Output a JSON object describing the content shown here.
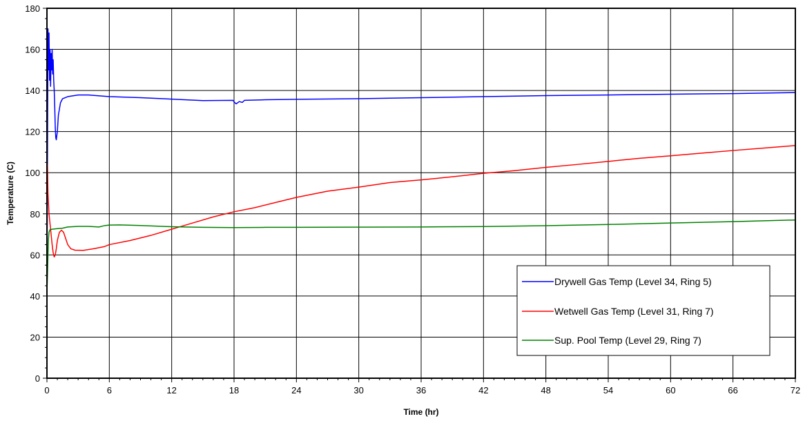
{
  "chart_data": {
    "type": "line",
    "xlabel": "Time (hr)",
    "ylabel": "Temperature (C)",
    "xlim": [
      0,
      72
    ],
    "ylim": [
      0,
      180
    ],
    "xticks": [
      0,
      6,
      12,
      18,
      24,
      30,
      36,
      42,
      48,
      54,
      60,
      66,
      72
    ],
    "yticks": [
      0,
      20,
      40,
      60,
      80,
      100,
      120,
      140,
      160,
      180
    ],
    "grid": true,
    "legend_position": "bottom-right",
    "series": [
      {
        "name": "Drywell Gas Temp (Level 34, Ring 5)",
        "color": "#0000ff",
        "points": [
          [
            0,
            40
          ],
          [
            0.05,
            105
          ],
          [
            0.1,
            170
          ],
          [
            0.15,
            150
          ],
          [
            0.2,
            168
          ],
          [
            0.25,
            145
          ],
          [
            0.3,
            160
          ],
          [
            0.35,
            142
          ],
          [
            0.4,
            158
          ],
          [
            0.45,
            150
          ],
          [
            0.5,
            160
          ],
          [
            0.55,
            148
          ],
          [
            0.6,
            155
          ],
          [
            0.65,
            145
          ],
          [
            0.7,
            140
          ],
          [
            0.75,
            132
          ],
          [
            0.8,
            122
          ],
          [
            0.85,
            117
          ],
          [
            0.9,
            116
          ],
          [
            1.0,
            120
          ],
          [
            1.1,
            128
          ],
          [
            1.3,
            134
          ],
          [
            1.5,
            136
          ],
          [
            2.0,
            137
          ],
          [
            3.0,
            137.8
          ],
          [
            4.0,
            137.8
          ],
          [
            6.0,
            137
          ],
          [
            9.0,
            136.5
          ],
          [
            12.0,
            135.8
          ],
          [
            15.0,
            135.1
          ],
          [
            17.9,
            135.2
          ],
          [
            18.0,
            134.5
          ],
          [
            18.2,
            133.5
          ],
          [
            18.5,
            134.6
          ],
          [
            18.8,
            134.2
          ],
          [
            19.0,
            135.2
          ],
          [
            21.0,
            135.5
          ],
          [
            24.0,
            135.7
          ],
          [
            30.0,
            136.0
          ],
          [
            36.0,
            136.5
          ],
          [
            42.0,
            137.0
          ],
          [
            48.0,
            137.5
          ],
          [
            54.0,
            137.8
          ],
          [
            60.0,
            138.2
          ],
          [
            66.0,
            138.5
          ],
          [
            72.0,
            139.0
          ]
        ]
      },
      {
        "name": "Wetwell Gas Temp (Level 31, Ring 7)",
        "color": "#ff0000",
        "points": [
          [
            0,
            92
          ],
          [
            0.05,
            104
          ],
          [
            0.1,
            90
          ],
          [
            0.2,
            80
          ],
          [
            0.3,
            75
          ],
          [
            0.4,
            70
          ],
          [
            0.5,
            65
          ],
          [
            0.6,
            61
          ],
          [
            0.7,
            59
          ],
          [
            0.8,
            60
          ],
          [
            0.9,
            63
          ],
          [
            1.0,
            67
          ],
          [
            1.2,
            71
          ],
          [
            1.4,
            72
          ],
          [
            1.6,
            71
          ],
          [
            1.8,
            68
          ],
          [
            2.0,
            65
          ],
          [
            2.3,
            63
          ],
          [
            2.7,
            62.3
          ],
          [
            3.5,
            62.2
          ],
          [
            4.5,
            63
          ],
          [
            5.5,
            64
          ],
          [
            6.0,
            65
          ],
          [
            8.0,
            67
          ],
          [
            10.0,
            69.5
          ],
          [
            12.0,
            72.5
          ],
          [
            14.0,
            75.5
          ],
          [
            16.0,
            78.5
          ],
          [
            18.0,
            81
          ],
          [
            20.0,
            83
          ],
          [
            22.0,
            85.5
          ],
          [
            24.0,
            88
          ],
          [
            27.0,
            91
          ],
          [
            30.0,
            93
          ],
          [
            33.0,
            95.2
          ],
          [
            36.0,
            96.5
          ],
          [
            39.0,
            98
          ],
          [
            42.0,
            99.7
          ],
          [
            45.0,
            101
          ],
          [
            48.0,
            102.6
          ],
          [
            51.0,
            104
          ],
          [
            54.0,
            105.5
          ],
          [
            57.0,
            107
          ],
          [
            60.0,
            108.2
          ],
          [
            63.0,
            109.5
          ],
          [
            66.0,
            110.8
          ],
          [
            69.0,
            112
          ],
          [
            72.0,
            113.2
          ]
        ]
      },
      {
        "name": "Sup. Pool Temp (Level 29,  Ring 7)",
        "color": "#008000",
        "points": [
          [
            0,
            42
          ],
          [
            0.05,
            50
          ],
          [
            0.1,
            60
          ],
          [
            0.15,
            68
          ],
          [
            0.2,
            71
          ],
          [
            0.3,
            72.3
          ],
          [
            0.5,
            72.5
          ],
          [
            1.0,
            72.8
          ],
          [
            1.5,
            73
          ],
          [
            2.0,
            73.6
          ],
          [
            3.0,
            73.9
          ],
          [
            4.0,
            73.9
          ],
          [
            5.0,
            73.6
          ],
          [
            5.5,
            74.2
          ],
          [
            6.0,
            74.5
          ],
          [
            7.0,
            74.6
          ],
          [
            9.0,
            74.3
          ],
          [
            12.0,
            73.7
          ],
          [
            15.0,
            73.4
          ],
          [
            18.0,
            73.3
          ],
          [
            21.0,
            73.4
          ],
          [
            24.0,
            73.4
          ],
          [
            30.0,
            73.5
          ],
          [
            36.0,
            73.6
          ],
          [
            42.0,
            73.8
          ],
          [
            48.0,
            74.2
          ],
          [
            54.0,
            74.8
          ],
          [
            60.0,
            75.5
          ],
          [
            66.0,
            76.2
          ],
          [
            72.0,
            77.0
          ]
        ]
      }
    ]
  }
}
